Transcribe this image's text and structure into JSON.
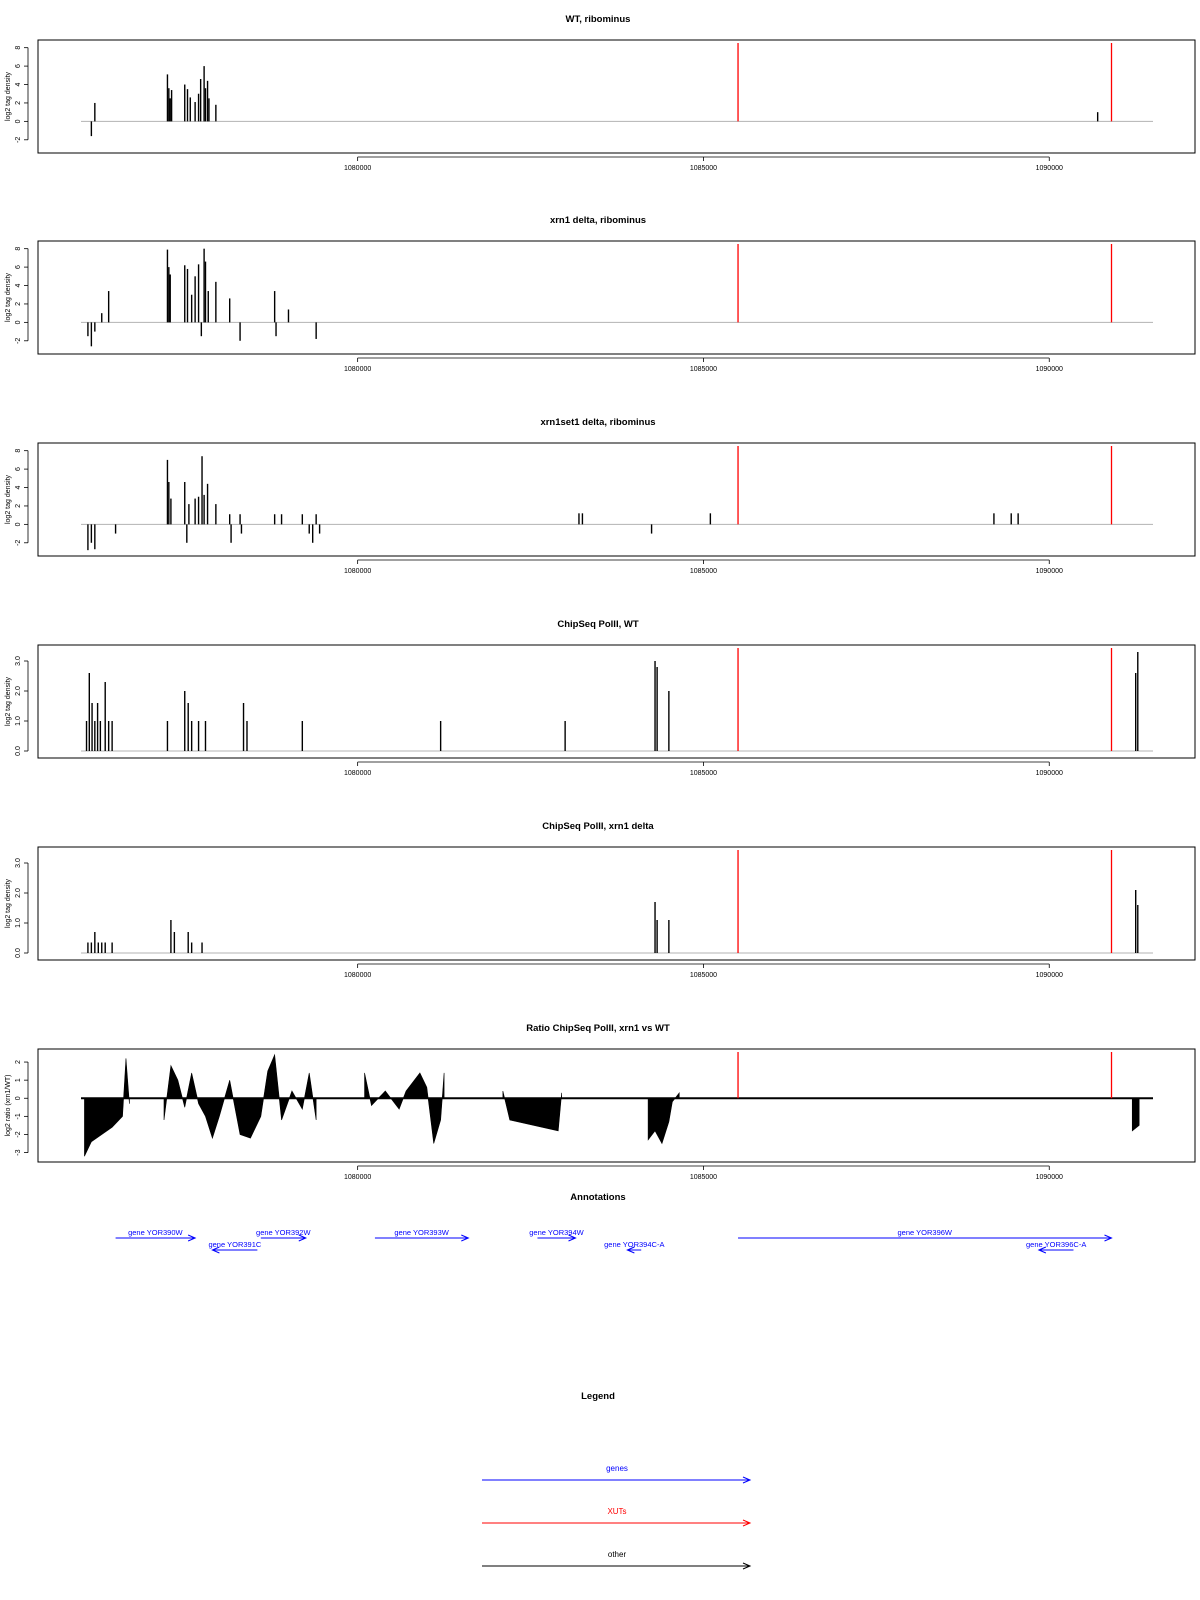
{
  "colors": {
    "data": "#000000",
    "xut": "#ff0000",
    "gene": "#0000ff",
    "baseline": "#b3b3b3",
    "frame": "#000000"
  },
  "xut_positions": [
    1085500,
    1090900
  ],
  "chart_data": [
    {
      "type": "bar",
      "title": "WT, ribominus",
      "ylabel": "log2 tag density",
      "xlim": [
        1077800,
        1093000
      ],
      "ylim": [
        -3,
        8.4
      ],
      "x_ticks": [
        1080000,
        1085000,
        1090000
      ],
      "x_tick_labels": [
        "1080000",
        "1085000",
        "1090000"
      ],
      "y_ticks": [
        -2,
        0,
        2,
        4,
        6,
        8
      ],
      "y_tick_labels": [
        "-2",
        "0",
        "2",
        "4",
        "6",
        "8"
      ],
      "baseline": 0,
      "bars": [
        [
          1076150,
          -1.6
        ],
        [
          1076200,
          2.0
        ],
        [
          1077250,
          5.1
        ],
        [
          1077270,
          3.6
        ],
        [
          1077290,
          2.5
        ],
        [
          1077310,
          3.4
        ],
        [
          1077500,
          4.0
        ],
        [
          1077540,
          3.5
        ],
        [
          1077580,
          2.6
        ],
        [
          1077650,
          2.1
        ],
        [
          1077700,
          3.0
        ],
        [
          1077730,
          4.6
        ],
        [
          1077780,
          6.0
        ],
        [
          1077800,
          3.6
        ],
        [
          1077830,
          4.4
        ],
        [
          1077850,
          2.5
        ],
        [
          1077950,
          1.8
        ],
        [
          1090700,
          1.0
        ]
      ]
    },
    {
      "type": "bar",
      "title": "xrn1 delta, ribominus",
      "ylabel": "log2 tag density",
      "xlim": [
        1077800,
        1093000
      ],
      "ylim": [
        -3,
        8.4
      ],
      "x_ticks": [
        1080000,
        1085000,
        1090000
      ],
      "x_tick_labels": [
        "1080000",
        "1085000",
        "1090000"
      ],
      "y_ticks": [
        -2,
        0,
        2,
        4,
        6,
        8
      ],
      "y_tick_labels": [
        "-2",
        "0",
        "2",
        "4",
        "6",
        "8"
      ],
      "baseline": 0,
      "bars": [
        [
          1076100,
          -1.5
        ],
        [
          1076150,
          -2.6
        ],
        [
          1076200,
          -1.0
        ],
        [
          1076300,
          1.0
        ],
        [
          1076400,
          3.4
        ],
        [
          1077250,
          7.9
        ],
        [
          1077270,
          6.0
        ],
        [
          1077290,
          5.2
        ],
        [
          1077500,
          6.2
        ],
        [
          1077540,
          5.8
        ],
        [
          1077600,
          3.0
        ],
        [
          1077650,
          5.0
        ],
        [
          1077700,
          6.3
        ],
        [
          1077740,
          -1.5
        ],
        [
          1077780,
          8.0
        ],
        [
          1077800,
          6.6
        ],
        [
          1077840,
          3.4
        ],
        [
          1077950,
          4.4
        ],
        [
          1078150,
          2.6
        ],
        [
          1078300,
          -2.0
        ],
        [
          1078800,
          3.4
        ],
        [
          1078820,
          -1.5
        ],
        [
          1079000,
          1.4
        ],
        [
          1079400,
          -1.8
        ]
      ]
    },
    {
      "type": "bar",
      "title": "xrn1set1 delta, ribominus",
      "ylabel": "log2 tag density",
      "xlim": [
        1077800,
        1093000
      ],
      "ylim": [
        -3,
        8.4
      ],
      "x_ticks": [
        1080000,
        1085000,
        1090000
      ],
      "x_tick_labels": [
        "1080000",
        "1085000",
        "1090000"
      ],
      "y_ticks": [
        -2,
        0,
        2,
        4,
        6,
        8
      ],
      "y_tick_labels": [
        "-2",
        "0",
        "2",
        "4",
        "6",
        "8"
      ],
      "baseline": 0,
      "bars": [
        [
          1076100,
          -2.8
        ],
        [
          1076150,
          -2.0
        ],
        [
          1076200,
          -2.7
        ],
        [
          1076500,
          -1.0
        ],
        [
          1077250,
          7.0
        ],
        [
          1077270,
          4.6
        ],
        [
          1077300,
          2.8
        ],
        [
          1077500,
          4.6
        ],
        [
          1077530,
          -2.0
        ],
        [
          1077560,
          2.2
        ],
        [
          1077650,
          2.8
        ],
        [
          1077700,
          3.0
        ],
        [
          1077750,
          7.4
        ],
        [
          1077780,
          3.2
        ],
        [
          1077830,
          4.4
        ],
        [
          1077950,
          2.2
        ],
        [
          1078150,
          1.1
        ],
        [
          1078170,
          -2.0
        ],
        [
          1078300,
          1.1
        ],
        [
          1078320,
          -1.0
        ],
        [
          1078800,
          1.1
        ],
        [
          1078900,
          1.1
        ],
        [
          1079200,
          1.1
        ],
        [
          1079300,
          -1.0
        ],
        [
          1079350,
          -2.0
        ],
        [
          1079400,
          1.1
        ],
        [
          1079450,
          -1.0
        ],
        [
          1083200,
          1.2
        ],
        [
          1083250,
          1.2
        ],
        [
          1084250,
          -1.0
        ],
        [
          1085100,
          1.2
        ],
        [
          1089200,
          1.2
        ],
        [
          1089450,
          1.2
        ],
        [
          1089550,
          1.2
        ]
      ]
    },
    {
      "type": "bar",
      "title": "ChipSeq PolII, WT",
      "ylabel": "log2 tag density",
      "xlim": [
        1077800,
        1093000
      ],
      "ylim": [
        -0.1,
        3.4
      ],
      "x_ticks": [
        1080000,
        1085000,
        1090000
      ],
      "x_tick_labels": [
        "1080000",
        "1085000",
        "1090000"
      ],
      "y_ticks": [
        0,
        1,
        2,
        3
      ],
      "y_tick_labels": [
        "0.0",
        "1.0",
        "2.0",
        "3.0"
      ],
      "baseline": 0,
      "bars": [
        [
          1076080,
          1.0
        ],
        [
          1076120,
          2.6
        ],
        [
          1076160,
          1.6
        ],
        [
          1076200,
          1.0
        ],
        [
          1076240,
          1.6
        ],
        [
          1076280,
          1.0
        ],
        [
          1076350,
          2.3
        ],
        [
          1076400,
          1.0
        ],
        [
          1076450,
          1.0
        ],
        [
          1077250,
          1.0
        ],
        [
          1077500,
          2.0
        ],
        [
          1077550,
          1.6
        ],
        [
          1077600,
          1.0
        ],
        [
          1077700,
          1.0
        ],
        [
          1077800,
          1.0
        ],
        [
          1078350,
          1.6
        ],
        [
          1078400,
          1.0
        ],
        [
          1079200,
          1.0
        ],
        [
          1081200,
          1.0
        ],
        [
          1083000,
          1.0
        ],
        [
          1084300,
          3.0
        ],
        [
          1084330,
          2.8
        ],
        [
          1084500,
          2.0
        ],
        [
          1091250,
          2.6
        ],
        [
          1091280,
          3.3
        ]
      ]
    },
    {
      "type": "bar",
      "title": "ChipSeq PolII, xrn1 delta",
      "ylabel": "log2 tag density",
      "xlim": [
        1077800,
        1093000
      ],
      "ylim": [
        -0.1,
        3.4
      ],
      "x_ticks": [
        1080000,
        1085000,
        1090000
      ],
      "x_tick_labels": [
        "1080000",
        "1085000",
        "1090000"
      ],
      "y_ticks": [
        0,
        1,
        2,
        3
      ],
      "y_tick_labels": [
        "0.0",
        "1.0",
        "2.0",
        "3.0"
      ],
      "baseline": 0,
      "bars": [
        [
          1076100,
          0.35
        ],
        [
          1076150,
          0.35
        ],
        [
          1076200,
          0.7
        ],
        [
          1076250,
          0.35
        ],
        [
          1076300,
          0.35
        ],
        [
          1076350,
          0.35
        ],
        [
          1076450,
          0.35
        ],
        [
          1077300,
          1.1
        ],
        [
          1077350,
          0.7
        ],
        [
          1077550,
          0.7
        ],
        [
          1077600,
          0.35
        ],
        [
          1077750,
          0.35
        ],
        [
          1084300,
          1.7
        ],
        [
          1084330,
          1.1
        ],
        [
          1084500,
          1.1
        ],
        [
          1091250,
          2.1
        ],
        [
          1091280,
          1.6
        ]
      ]
    },
    {
      "type": "bar",
      "title": "Ratio ChipSeq PolII, xrn1 vs WT",
      "ylabel": "log2 ratio (xrn1/WT)",
      "xlim": [
        1077800,
        1093000
      ],
      "ylim": [
        -3.3,
        2.5
      ],
      "x_ticks": [
        1080000,
        1085000,
        1090000
      ],
      "x_tick_labels": [
        "1080000",
        "1085000",
        "1090000"
      ],
      "y_ticks": [
        -3,
        -2,
        -1,
        0,
        1,
        2
      ],
      "y_tick_labels": [
        "-3",
        "-2",
        "-1",
        "0",
        "1",
        "2"
      ],
      "baseline": 0,
      "profile_segments": [
        [
          [
            1076050,
            -3.2
          ],
          [
            1076150,
            -2.4
          ],
          [
            1076300,
            -2.0
          ],
          [
            1076450,
            -1.6
          ],
          [
            1076600,
            -1.0
          ],
          [
            1076650,
            2.2
          ],
          [
            1076700,
            -0.3
          ]
        ],
        [
          [
            1077200,
            -1.2
          ],
          [
            1077300,
            1.8
          ],
          [
            1077400,
            1.0
          ],
          [
            1077500,
            -0.5
          ],
          [
            1077600,
            1.4
          ],
          [
            1077700,
            -0.3
          ],
          [
            1077800,
            -1.0
          ],
          [
            1077900,
            -2.2
          ],
          [
            1078000,
            -1.0
          ],
          [
            1078150,
            1.0
          ],
          [
            1078300,
            -2.0
          ],
          [
            1078450,
            -2.2
          ],
          [
            1078600,
            -1.0
          ],
          [
            1078700,
            1.5
          ],
          [
            1078800,
            2.4
          ],
          [
            1078900,
            -1.2
          ],
          [
            1079050,
            0.4
          ],
          [
            1079200,
            -0.6
          ],
          [
            1079300,
            1.4
          ],
          [
            1079400,
            -1.2
          ]
        ],
        [
          [
            1080100,
            1.4
          ],
          [
            1080200,
            -0.4
          ],
          [
            1080400,
            0.4
          ],
          [
            1080600,
            -0.6
          ],
          [
            1080700,
            0.4
          ],
          [
            1080900,
            1.4
          ],
          [
            1081000,
            0.6
          ],
          [
            1081100,
            -2.5
          ],
          [
            1081200,
            -1.2
          ],
          [
            1081250,
            1.4
          ]
        ],
        [
          [
            1082100,
            0.4
          ],
          [
            1082200,
            -1.2
          ],
          [
            1082900,
            -1.8
          ],
          [
            1082950,
            0.3
          ]
        ],
        [
          [
            1084200,
            -2.3
          ],
          [
            1084300,
            -1.8
          ],
          [
            1084400,
            -2.5
          ],
          [
            1084500,
            -1.3
          ],
          [
            1084550,
            -0.2
          ],
          [
            1084650,
            0.3
          ]
        ],
        [
          [
            1091200,
            -1.8
          ],
          [
            1091300,
            -1.5
          ]
        ]
      ]
    }
  ],
  "annotations": {
    "title": "Annotations",
    "genes": [
      {
        "label": "gene YOR390W",
        "start": 1076500,
        "end": 1077650
      },
      {
        "label": "gene YOR391C",
        "start": 1078550,
        "end": 1077900
      },
      {
        "label": "gene YOR392W",
        "start": 1078600,
        "end": 1079250
      },
      {
        "label": "gene YOR393W",
        "start": 1080250,
        "end": 1081600
      },
      {
        "label": "gene YOR394W",
        "start": 1082600,
        "end": 1083150
      },
      {
        "label": "gene YOR394C-A",
        "start": 1084100,
        "end": 1083900
      },
      {
        "label": "gene YOR396W",
        "start": 1085500,
        "end": 1090900
      },
      {
        "label": "gene YOR396C-A",
        "start": 1090350,
        "end": 1089850
      }
    ]
  },
  "legend": {
    "title": "Legend",
    "entries": [
      {
        "label": "genes",
        "color": "#0000ff"
      },
      {
        "label": "XUTs",
        "color": "#ff0000"
      },
      {
        "label": "other",
        "color": "#000000"
      }
    ]
  }
}
